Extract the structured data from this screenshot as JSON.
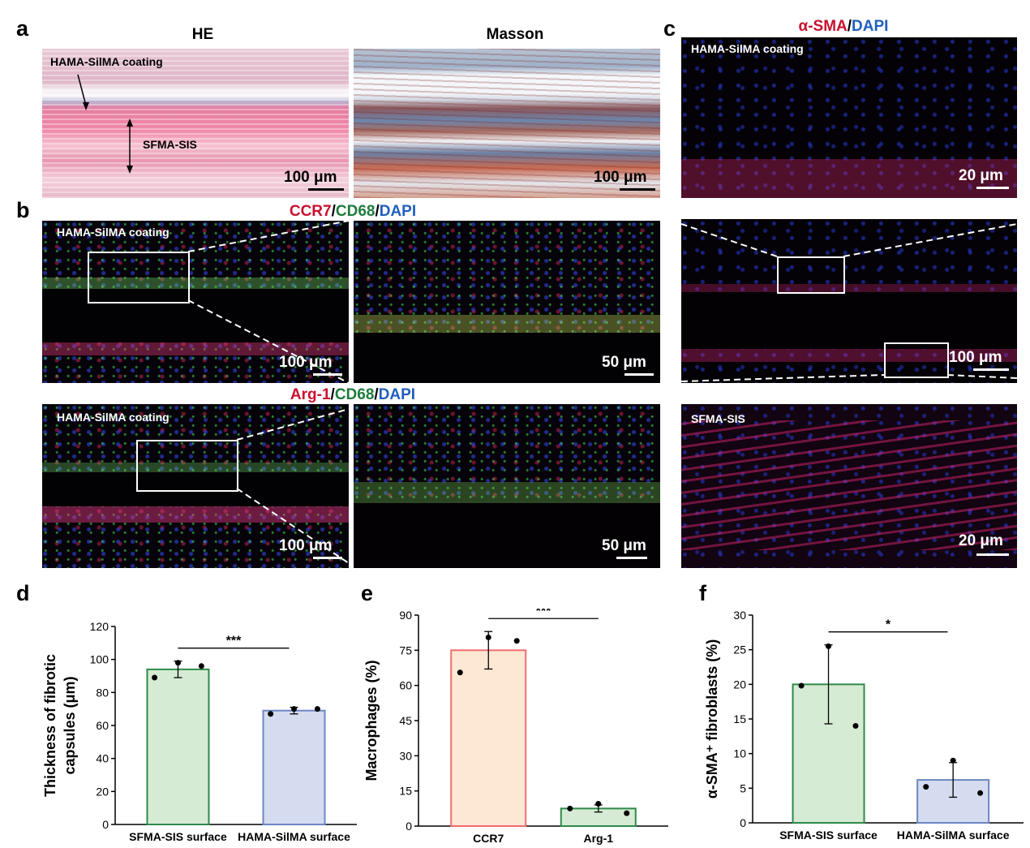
{
  "panel_labels": {
    "a": "a",
    "b": "b",
    "c": "c",
    "d": "d",
    "e": "e",
    "f": "f"
  },
  "panel_a": {
    "he_title": "HE",
    "masson_title": "Masson",
    "label_coating": "HAMA-SilMA coating",
    "label_sis": "SFMA-SIS",
    "he_scale": "100 μm",
    "masson_scale": "100 μm"
  },
  "panel_b": {
    "title1": {
      "p1": "CCR7",
      "p2": "/",
      "p3": "CD68",
      "p4": "/",
      "p5": "DAPI"
    },
    "title2": {
      "p1": "Arg-1",
      "p2": "/",
      "p3": "CD68",
      "p4": "/",
      "p5": "DAPI"
    },
    "coating_label_1": "HAMA-SilMA coating",
    "coating_label_2": "HAMA-SilMA coating",
    "scale_overview_1": "100 μm",
    "scale_zoom_1": "50 μm",
    "scale_overview_2": "100 μm",
    "scale_zoom_2": "50 μm"
  },
  "panel_c": {
    "title": {
      "p1": "α-SMA",
      "p2": "/",
      "p3": "DAPI"
    },
    "top_label": "HAMA-SilMA coating",
    "top_scale": "20 μm",
    "mid_scale": "100 μm",
    "bottom_label": "SFMA-SIS",
    "bottom_scale": "20 μm"
  },
  "colors": {
    "red": "#c8102e",
    "green": "#1e7b3c",
    "blue": "#1f5fbf",
    "bar_green_fill": "#d6ebd4",
    "bar_green_edge": "#2e8b4a",
    "bar_blue_fill": "#d5dcef",
    "bar_blue_edge": "#6d86c4",
    "bar_orange_fill": "#fde8d4",
    "bar_orange_edge": "#f06d6d"
  },
  "chart_data": [
    {
      "type": "bar",
      "panel": "d",
      "categories": [
        "SFMA-SIS surface",
        "HAMA-SilMA surface"
      ],
      "values": [
        94,
        69
      ],
      "errors": [
        5,
        2
      ],
      "points": [
        [
          89,
          98,
          96
        ],
        [
          67,
          70,
          70
        ]
      ],
      "ylabel": "Thickness of fibrotic capsules (μm)",
      "ylabel_lines": [
        "Thickness of fibrotic",
        "capsules (μm)"
      ],
      "ylim": [
        0,
        120
      ],
      "yticks": [
        0,
        20,
        40,
        60,
        80,
        100,
        120
      ],
      "significance": "***"
    },
    {
      "type": "bar",
      "panel": "e",
      "categories": [
        "CCR7",
        "Arg-1"
      ],
      "values": [
        75,
        7.5
      ],
      "errors": [
        8,
        1.5
      ],
      "points": [
        [
          65.5,
          80.5,
          79
        ],
        [
          7.5,
          9.5,
          5.5
        ]
      ],
      "ylabel": "Macrophages (%)",
      "ylim": [
        0,
        90
      ],
      "yticks": [
        0,
        15,
        30,
        45,
        60,
        75,
        90
      ],
      "significance": "***"
    },
    {
      "type": "bar",
      "panel": "f",
      "categories": [
        "SFMA-SIS surface",
        "HAMA-SilMA surface"
      ],
      "values": [
        20,
        6.2
      ],
      "errors": [
        5.7,
        2.5
      ],
      "points": [
        [
          19.8,
          25.5,
          14
        ],
        [
          5.2,
          9,
          4.3
        ]
      ],
      "ylabel": "α-SMA⁺ fibroblasts (%)",
      "ylim": [
        0,
        30
      ],
      "yticks": [
        0,
        5,
        10,
        15,
        20,
        25,
        30
      ],
      "significance": "*"
    }
  ]
}
